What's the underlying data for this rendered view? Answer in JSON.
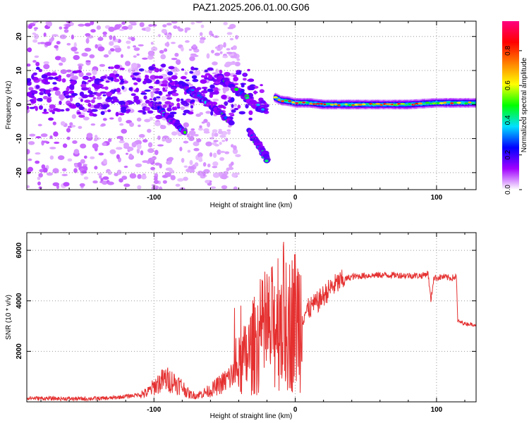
{
  "figure": {
    "title": "PAZ1.2025.206.01.00.G06"
  },
  "chart_data": [
    {
      "type": "heatmap",
      "xlabel": "Height of straight line (km)",
      "ylabel": "Frequency (Hz)",
      "xlim": [
        -190,
        128
      ],
      "ylim": [
        -25,
        24.5
      ],
      "xticks": [
        -100,
        0,
        100
      ],
      "yticks": [
        -20,
        -10,
        0,
        10,
        20
      ],
      "colorbar": {
        "label": "Normalized spectral amplitude",
        "range": [
          0,
          0.97
        ],
        "ticks": [
          "0.0",
          "0.2",
          "0.4",
          "0.6",
          "0.8"
        ],
        "tick_values": [
          0,
          0.2,
          0.4,
          0.6,
          0.8
        ],
        "colors": [
          "#ffffff",
          "#a000ff",
          "#0000ff",
          "#00e0ff",
          "#00ff00",
          "#ffff00",
          "#ff8000",
          "#ff0000",
          "#ff0080"
        ]
      },
      "ridge": [
        {
          "x": -14,
          "freq": 2.0
        },
        {
          "x": -10,
          "freq": 1.2
        },
        {
          "x": -5,
          "freq": 1.0
        },
        {
          "x": 0,
          "freq": 0.5
        },
        {
          "x": 10,
          "freq": 0.5
        },
        {
          "x": 20,
          "freq": 0.0
        },
        {
          "x": 40,
          "freq": 0.0
        },
        {
          "x": 60,
          "freq": 0.0
        },
        {
          "x": 80,
          "freq": 0.0
        },
        {
          "x": 100,
          "freq": 0.5
        },
        {
          "x": 128,
          "freq": 0.5
        }
      ],
      "streaks": [
        {
          "x0": -55,
          "f0": 8.5,
          "x1": -22,
          "f1": -2.0
        },
        {
          "x0": -80,
          "f0": 6.0,
          "x1": -45,
          "f1": -5.0
        },
        {
          "x0": -100,
          "f0": 0.0,
          "x1": -78,
          "f1": -8.0
        },
        {
          "x0": -32,
          "f0": -8.0,
          "x1": -20,
          "f1": -16.0
        }
      ]
    },
    {
      "type": "line",
      "xlabel": "Height of straight line (km)",
      "ylabel": "SNR (10 * v/v)",
      "xlim": [
        -190,
        128
      ],
      "ylim": [
        0,
        6700
      ],
      "xticks": [
        -100,
        0,
        100
      ],
      "yticks": [
        2000,
        4000,
        6000
      ],
      "color": "#e53030",
      "series": [
        {
          "x": -190,
          "y": 150
        },
        {
          "x": -170,
          "y": 130
        },
        {
          "x": -150,
          "y": 120
        },
        {
          "x": -130,
          "y": 150
        },
        {
          "x": -115,
          "y": 250
        },
        {
          "x": -105,
          "y": 350
        },
        {
          "x": -98,
          "y": 700
        },
        {
          "x": -92,
          "y": 900
        },
        {
          "x": -86,
          "y": 800
        },
        {
          "x": -80,
          "y": 600
        },
        {
          "x": -75,
          "y": 300
        },
        {
          "x": -70,
          "y": 250
        },
        {
          "x": -60,
          "y": 450
        },
        {
          "x": -50,
          "y": 800
        },
        {
          "x": -42,
          "y": 1200
        },
        {
          "x": -34,
          "y": 1800
        },
        {
          "x": -26,
          "y": 2500
        },
        {
          "x": -20,
          "y": 2700
        },
        {
          "x": -16,
          "y": 2900
        },
        {
          "x": -12,
          "y": 3500
        },
        {
          "x": -8,
          "y": 3400
        },
        {
          "x": -4,
          "y": 3100
        },
        {
          "x": 0,
          "y": 3300
        },
        {
          "x": 5,
          "y": 3400
        },
        {
          "x": 10,
          "y": 3700
        },
        {
          "x": 15,
          "y": 3900
        },
        {
          "x": 20,
          "y": 4200
        },
        {
          "x": 25,
          "y": 4500
        },
        {
          "x": 30,
          "y": 4700
        },
        {
          "x": 35,
          "y": 4850
        },
        {
          "x": 40,
          "y": 4950
        },
        {
          "x": 50,
          "y": 5000
        },
        {
          "x": 60,
          "y": 5020
        },
        {
          "x": 70,
          "y": 5020
        },
        {
          "x": 80,
          "y": 5000
        },
        {
          "x": 90,
          "y": 5000
        },
        {
          "x": 94,
          "y": 5100
        },
        {
          "x": 96,
          "y": 4000
        },
        {
          "x": 98,
          "y": 4900
        },
        {
          "x": 105,
          "y": 4950
        },
        {
          "x": 110,
          "y": 4900
        },
        {
          "x": 114,
          "y": 4950
        },
        {
          "x": 115,
          "y": 3200
        },
        {
          "x": 120,
          "y": 3100
        },
        {
          "x": 128,
          "y": 3050
        }
      ]
    }
  ]
}
